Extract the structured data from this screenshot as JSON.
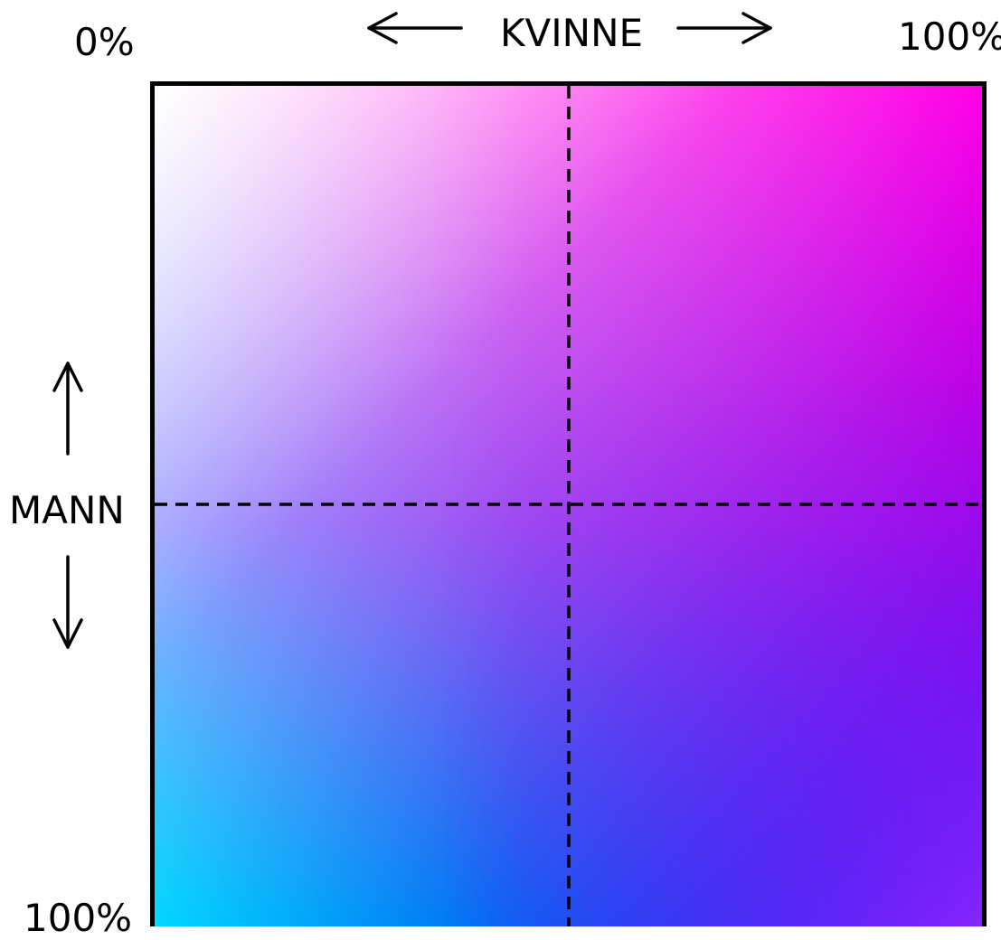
{
  "axes": {
    "horizontal": {
      "label": "KVINNE",
      "min_label": "0%",
      "max_label": "100%"
    },
    "vertical": {
      "label": "MANN",
      "min_label": "0%",
      "max_label": "100%"
    }
  },
  "colors": {
    "corner_top_left": "#ffffff",
    "corner_top_right": "#ff00e6",
    "corner_bottom_left": "#00d8ff",
    "corner_bottom_right": "#9a28ff",
    "border": "#000000",
    "divider": "#000000"
  },
  "dividers": {
    "style": "dashed",
    "vertical_at": "50%",
    "horizontal_at": "50%"
  }
}
